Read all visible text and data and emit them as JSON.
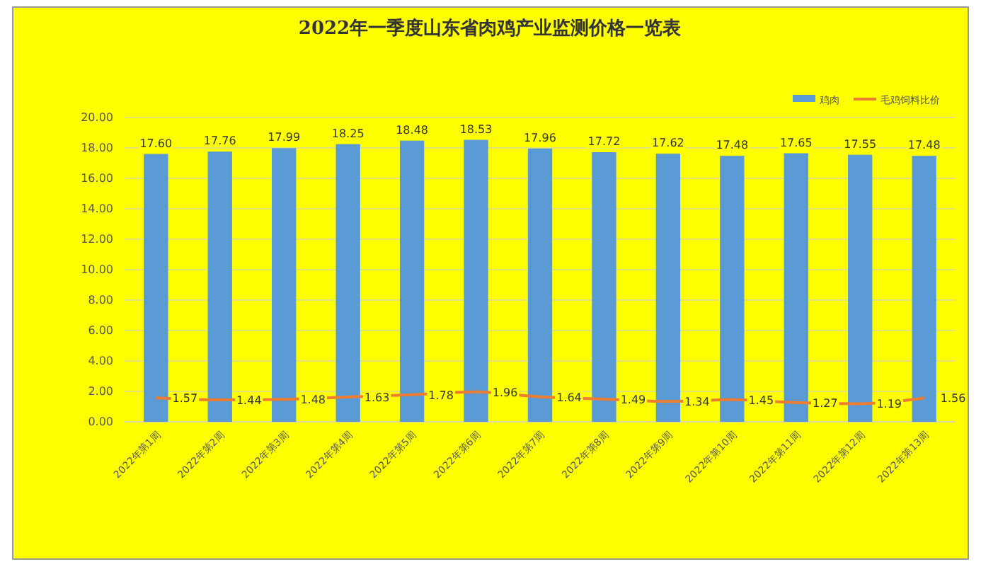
{
  "chart_data": {
    "type": "bar",
    "title": "2022年一季度山东省肉鸡产业监测价格一览表",
    "categories": [
      "2022年第1周",
      "2022年第2周",
      "2022年第3周",
      "2022年第4周",
      "2022年第5周",
      "2022年第6周",
      "2022年第7周",
      "2022年第8周",
      "2022年第9周",
      "2022年第10周",
      "2022年第11周",
      "2022年第12周",
      "2022年第13周"
    ],
    "series": [
      {
        "name": "鸡肉",
        "color": "#5b9bd5",
        "values": [
          17.6,
          17.76,
          17.99,
          18.25,
          18.48,
          18.53,
          17.96,
          17.72,
          17.62,
          17.48,
          17.65,
          17.55,
          17.48
        ],
        "value_labels": [
          "17.60",
          "17.76",
          "17.99",
          "18.25",
          "18.48",
          "18.53",
          "17.96",
          "17.72",
          "17.62",
          "17.48",
          "17.65",
          "17.55",
          "17.48"
        ]
      },
      {
        "name": "毛鸡饲料比价",
        "color": "#ed7d31",
        "type": "line",
        "values": [
          1.57,
          1.44,
          1.48,
          1.63,
          1.78,
          1.96,
          1.64,
          1.49,
          1.34,
          1.45,
          1.27,
          1.19,
          1.56
        ],
        "value_labels": [
          "1.57",
          "1.44",
          "1.48",
          "1.63",
          "1.78",
          "1.96",
          "1.64",
          "1.49",
          "1.34",
          "1.45",
          "1.27",
          "1.19",
          "1.56"
        ]
      }
    ],
    "ylim": [
      0,
      20
    ],
    "yticks": [
      {
        "value": 0,
        "label": "0.00"
      },
      {
        "value": 2,
        "label": "2.00"
      },
      {
        "value": 4,
        "label": "4.00"
      },
      {
        "value": 6,
        "label": "6.00"
      },
      {
        "value": 8,
        "label": "8.00"
      },
      {
        "value": 10,
        "label": "10.00"
      },
      {
        "value": 12,
        "label": "12.00"
      },
      {
        "value": 14,
        "label": "14.00"
      },
      {
        "value": 16,
        "label": "16.00"
      },
      {
        "value": 18,
        "label": "18.00"
      },
      {
        "value": 20,
        "label": "20.00"
      }
    ],
    "grid": "y",
    "legend": "top right",
    "marker": "none"
  }
}
